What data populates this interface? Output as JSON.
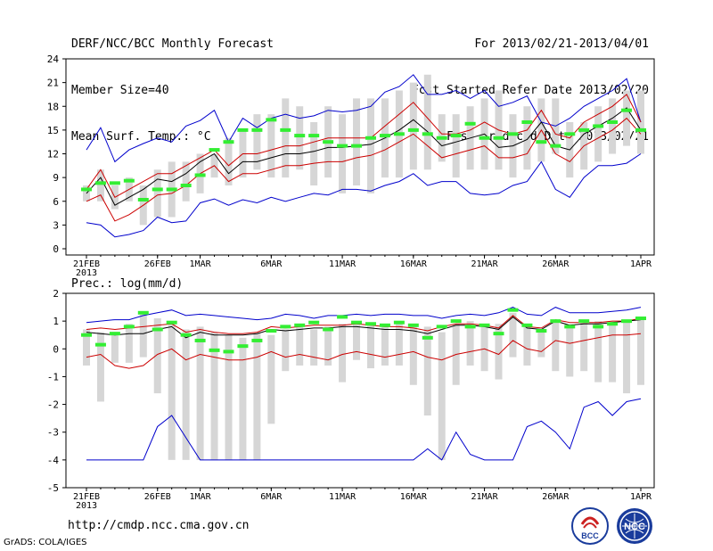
{
  "header": {
    "title": "DERF/NCC/BCC Monthly Forecast",
    "member_size": "Member Size=40",
    "variable": "Mean Surf. Temp.: °C",
    "period": "For 2013/02/21-2013/04/01",
    "started": "Fcst Started Refer Date 2013/02/20",
    "produced": "Fcst Produced Date 2013/02/21"
  },
  "footer": {
    "url": "http://cmdp.ncc.cma.gov.cn",
    "credit": "GrADS: COLA/IGES",
    "logo_left_text": "BCC",
    "logo_right_text": "NCC"
  },
  "colors": {
    "box": "#d6d6d6",
    "green": "#33ee33",
    "blue": "#0000cc",
    "red": "#cc0000",
    "mean": "#000000"
  },
  "chart_data": [
    {
      "type": "line",
      "title": "Mean Surf. Temp.: °C",
      "xlabel": "",
      "ylabel": "°C",
      "ylim": [
        0,
        24
      ],
      "yticks": [
        0,
        3,
        6,
        9,
        12,
        15,
        18,
        21,
        24
      ],
      "xticks": [
        {
          "day": 0,
          "label": "21FEB",
          "sub": "2013"
        },
        {
          "day": 5,
          "label": "26FEB"
        },
        {
          "day": 8,
          "label": "1MAR"
        },
        {
          "day": 13,
          "label": "6MAR"
        },
        {
          "day": 18,
          "label": "11MAR"
        },
        {
          "day": 23,
          "label": "16MAR"
        },
        {
          "day": 28,
          "label": "21MAR"
        },
        {
          "day": 33,
          "label": "26MAR"
        },
        {
          "day": 39,
          "label": "1APR"
        }
      ],
      "box_low": [
        6,
        6,
        5,
        6,
        3,
        4,
        4,
        6,
        7,
        9,
        8,
        9,
        10,
        9,
        9,
        10,
        8,
        9,
        7,
        8,
        7,
        9,
        9,
        10,
        10,
        11,
        9,
        10,
        10,
        10,
        9,
        10,
        11,
        12,
        9,
        10,
        11,
        12,
        13,
        12
      ],
      "box_high": [
        8,
        10,
        8,
        9,
        8,
        10,
        11,
        11,
        12,
        12,
        14,
        15,
        17,
        17,
        19,
        18,
        16,
        18,
        17,
        19,
        19,
        19,
        20,
        21,
        22,
        17,
        17,
        18,
        19,
        20,
        17,
        18,
        19,
        19,
        16,
        16,
        18,
        19,
        20,
        20
      ],
      "series": [
        {
          "name": "member-median",
          "style": "green",
          "values": [
            7.5,
            8.3,
            8.3,
            8.6,
            6.2,
            7.5,
            7.5,
            8.0,
            9.3,
            12.5,
            13.5,
            15.0,
            15.0,
            16.3,
            15.0,
            14.3,
            14.3,
            13.5,
            13.0,
            13.0,
            14.0,
            14.3,
            14.5,
            15.0,
            14.5,
            14.0,
            14.3,
            15.8,
            14.0,
            14.0,
            14.5,
            16.0,
            13.5,
            13.0,
            14.5,
            15.0,
            15.5,
            16.0,
            17.5,
            15.0
          ]
        },
        {
          "name": "ensemble-max",
          "style": "blue",
          "values": [
            12.5,
            15.3,
            11.0,
            12.5,
            13.3,
            14.0,
            13.5,
            15.5,
            16.2,
            17.5,
            13.5,
            16.5,
            15.3,
            16.5,
            17.0,
            16.5,
            16.8,
            17.5,
            17.3,
            17.5,
            18.0,
            19.8,
            20.5,
            22.0,
            19.5,
            19.5,
            20.0,
            19.0,
            20.0,
            18.0,
            18.5,
            19.3,
            16.0,
            15.5,
            16.5,
            18.0,
            19.0,
            20.0,
            21.5,
            16.0
          ]
        },
        {
          "name": "ensemble-min",
          "style": "blue",
          "values": [
            3.3,
            3.0,
            1.5,
            1.8,
            2.3,
            4.0,
            3.3,
            3.5,
            5.8,
            6.3,
            5.5,
            6.2,
            5.8,
            6.5,
            6.0,
            6.5,
            7.0,
            6.8,
            7.5,
            7.5,
            7.3,
            8.0,
            8.5,
            9.5,
            8.0,
            8.5,
            8.5,
            7.0,
            6.8,
            7.0,
            8.0,
            8.5,
            11.0,
            7.5,
            6.5,
            9.0,
            10.5,
            10.5,
            10.8,
            12.0
          ]
        },
        {
          "name": "upper-bound",
          "style": "red",
          "values": [
            7.5,
            10.0,
            6.5,
            7.5,
            8.5,
            9.5,
            9.5,
            10.5,
            11.5,
            12.5,
            10.5,
            12.0,
            12.0,
            12.5,
            13.0,
            13.0,
            13.5,
            14.0,
            14.0,
            14.0,
            14.0,
            15.5,
            17.0,
            18.5,
            16.5,
            14.5,
            14.5,
            15.0,
            16.0,
            15.0,
            14.5,
            15.0,
            17.5,
            14.5,
            14.0,
            16.0,
            17.0,
            18.0,
            19.5,
            16.0
          ]
        },
        {
          "name": "lower-bound",
          "style": "red",
          "values": [
            6.0,
            6.8,
            3.5,
            4.3,
            5.5,
            6.8,
            7.0,
            8.0,
            9.5,
            10.5,
            8.5,
            9.5,
            9.5,
            10.0,
            10.5,
            10.5,
            10.8,
            11.0,
            11.0,
            11.5,
            11.8,
            12.5,
            13.5,
            14.5,
            13.0,
            11.5,
            12.0,
            12.5,
            13.0,
            11.5,
            11.5,
            12.0,
            15.0,
            12.0,
            11.0,
            13.0,
            14.0,
            15.0,
            16.5,
            14.5
          ]
        },
        {
          "name": "ensemble-mean",
          "style": "mean",
          "values": [
            7.0,
            9.0,
            5.5,
            6.5,
            7.5,
            8.8,
            8.5,
            9.5,
            11.0,
            12.0,
            9.5,
            11.0,
            11.0,
            11.5,
            12.0,
            12.0,
            12.3,
            12.8,
            12.8,
            13.0,
            13.2,
            14.0,
            15.0,
            16.3,
            14.8,
            13.0,
            13.5,
            14.0,
            14.5,
            12.8,
            13.0,
            13.8,
            16.0,
            13.0,
            12.5,
            14.5,
            15.5,
            16.5,
            17.8,
            15.0
          ]
        }
      ]
    },
    {
      "type": "line",
      "title": "Prec.: log(mm/d)",
      "xlabel": "",
      "ylabel": "log(mm/d)",
      "ylim": [
        -5,
        2
      ],
      "yticks": [
        -5,
        -4,
        -3,
        -2,
        -1,
        0,
        1,
        2
      ],
      "xticks": [
        {
          "day": 0,
          "label": "21FEB",
          "sub": "2013"
        },
        {
          "day": 5,
          "label": "26FEB"
        },
        {
          "day": 8,
          "label": "1MAR"
        },
        {
          "day": 13,
          "label": "6MAR"
        },
        {
          "day": 18,
          "label": "11MAR"
        },
        {
          "day": 23,
          "label": "16MAR"
        },
        {
          "day": 28,
          "label": "21MAR"
        },
        {
          "day": 33,
          "label": "26MAR"
        },
        {
          "day": 39,
          "label": "1APR"
        }
      ],
      "box_low": [
        -0.6,
        -1.9,
        -0.5,
        -0.5,
        -0.3,
        -1.6,
        -4.0,
        -4.0,
        -4.0,
        -4.0,
        -4.0,
        -4.0,
        -4.0,
        -2.7,
        -0.8,
        -0.6,
        -0.6,
        -0.6,
        -1.2,
        -0.4,
        -0.7,
        -0.6,
        -0.6,
        -1.3,
        -2.4,
        -4.0,
        -1.3,
        -0.6,
        -0.8,
        -1.1,
        -0.3,
        -0.6,
        -0.3,
        -0.8,
        -1.0,
        -0.8,
        -1.2,
        -1.2,
        -1.6,
        -1.3
      ],
      "box_high": [
        0.7,
        0.6,
        0.5,
        0.9,
        1.3,
        1.1,
        1.0,
        0.7,
        0.8,
        0.6,
        0.5,
        0.4,
        0.6,
        0.5,
        0.7,
        0.8,
        0.7,
        0.8,
        0.9,
        1.0,
        0.9,
        0.9,
        0.9,
        0.8,
        0.8,
        0.6,
        0.9,
        1.0,
        0.8,
        0.9,
        1.3,
        0.8,
        0.7,
        1.0,
        0.9,
        1.0,
        1.0,
        1.0,
        1.0,
        1.1
      ],
      "series": [
        {
          "name": "member-median",
          "style": "green",
          "values": [
            0.5,
            0.15,
            0.55,
            0.8,
            1.3,
            0.7,
            0.95,
            0.5,
            0.3,
            -0.05,
            -0.1,
            0.1,
            0.3,
            0.65,
            0.8,
            0.85,
            0.95,
            0.7,
            1.15,
            0.95,
            0.9,
            0.85,
            0.95,
            0.85,
            0.4,
            0.8,
            1.0,
            0.8,
            0.85,
            0.55,
            1.4,
            0.85,
            0.65,
            1.0,
            0.8,
            1.0,
            0.8,
            0.9,
            1.0,
            1.1
          ]
        },
        {
          "name": "ensemble-max",
          "style": "blue",
          "values": [
            0.95,
            1.0,
            1.05,
            1.05,
            1.2,
            1.3,
            1.4,
            1.2,
            1.25,
            1.2,
            1.15,
            1.1,
            1.05,
            1.1,
            1.25,
            1.2,
            1.1,
            1.2,
            1.2,
            1.25,
            1.2,
            1.25,
            1.25,
            1.2,
            1.2,
            1.1,
            1.2,
            1.25,
            1.2,
            1.3,
            1.5,
            1.25,
            1.2,
            1.5,
            1.3,
            1.3,
            1.3,
            1.35,
            1.4,
            1.5
          ]
        },
        {
          "name": "ensemble-min",
          "style": "blue",
          "values": [
            -4.0,
            -4.0,
            -4.0,
            -4.0,
            -4.0,
            -2.8,
            -2.4,
            -3.2,
            -4.0,
            -4.0,
            -4.0,
            -4.0,
            -4.0,
            -4.0,
            -4.0,
            -4.0,
            -4.0,
            -4.0,
            -4.0,
            -4.0,
            -4.0,
            -4.0,
            -4.0,
            -4.0,
            -3.6,
            -4.0,
            -3.0,
            -3.8,
            -4.0,
            -4.0,
            -4.0,
            -2.8,
            -2.6,
            -3.0,
            -3.6,
            -2.1,
            -1.9,
            -2.4,
            -1.9,
            -1.8
          ]
        },
        {
          "name": "upper-bound",
          "style": "red",
          "values": [
            0.7,
            0.75,
            0.7,
            0.75,
            0.8,
            0.85,
            0.9,
            0.6,
            0.7,
            0.6,
            0.55,
            0.55,
            0.6,
            0.8,
            0.75,
            0.8,
            0.85,
            0.85,
            0.85,
            0.9,
            0.85,
            0.8,
            0.8,
            0.75,
            0.65,
            0.8,
            0.9,
            0.9,
            0.85,
            0.75,
            1.2,
            0.8,
            0.75,
            1.05,
            0.95,
            0.95,
            0.95,
            1.0,
            1.0,
            1.1
          ]
        },
        {
          "name": "lower-bound",
          "style": "red",
          "values": [
            -0.3,
            -0.2,
            -0.6,
            -0.7,
            -0.6,
            -0.2,
            0.0,
            -0.4,
            -0.2,
            -0.3,
            -0.4,
            -0.4,
            -0.3,
            -0.1,
            -0.3,
            -0.2,
            -0.3,
            -0.4,
            -0.2,
            -0.1,
            -0.2,
            -0.3,
            -0.2,
            -0.1,
            -0.3,
            -0.4,
            -0.2,
            -0.1,
            0.0,
            -0.2,
            0.3,
            0.0,
            -0.1,
            0.3,
            0.2,
            0.3,
            0.4,
            0.5,
            0.5,
            0.55
          ]
        },
        {
          "name": "ensemble-mean",
          "style": "mean",
          "values": [
            0.6,
            0.55,
            0.5,
            0.55,
            0.55,
            0.7,
            0.8,
            0.4,
            0.6,
            0.5,
            0.5,
            0.5,
            0.55,
            0.7,
            0.65,
            0.7,
            0.75,
            0.75,
            0.8,
            0.8,
            0.75,
            0.7,
            0.7,
            0.65,
            0.55,
            0.7,
            0.85,
            0.85,
            0.8,
            0.7,
            1.15,
            0.75,
            0.7,
            1.0,
            0.85,
            0.9,
            0.9,
            0.95,
            1.0,
            1.05
          ]
        }
      ]
    }
  ]
}
